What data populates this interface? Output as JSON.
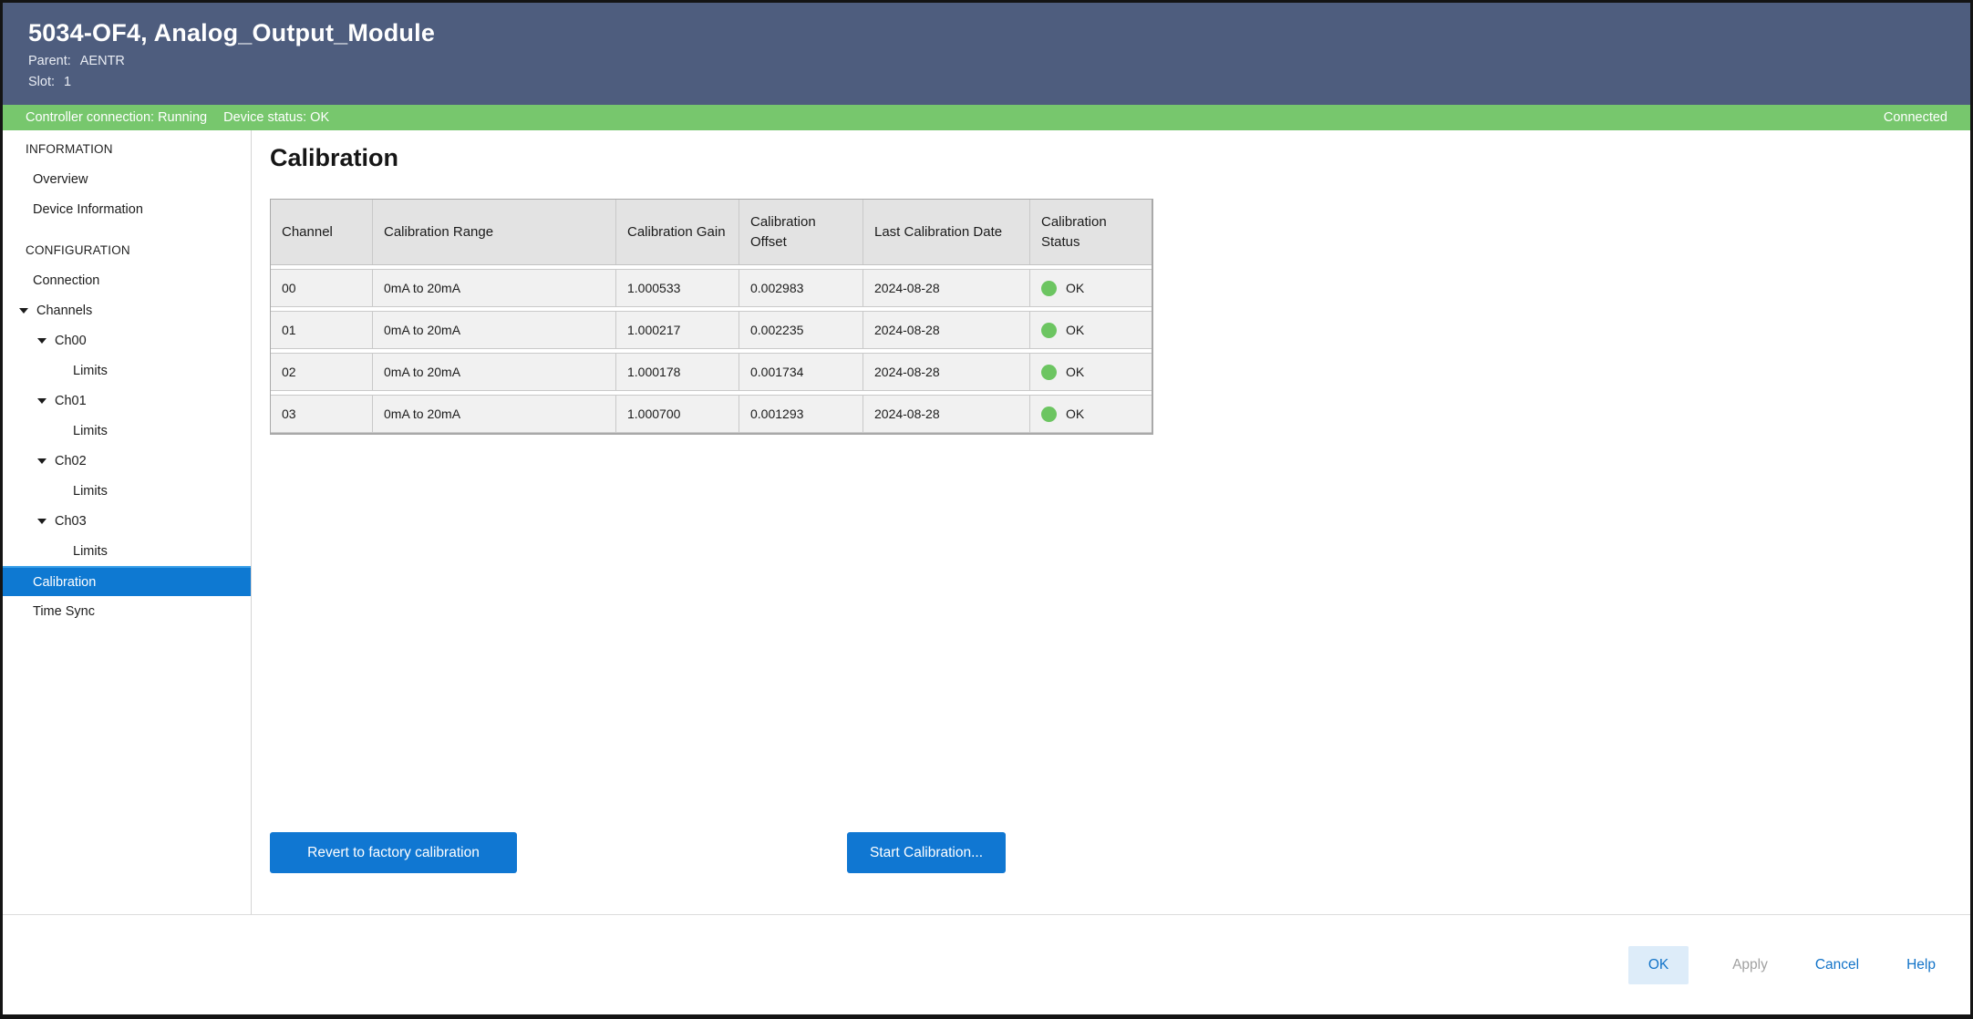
{
  "header": {
    "title": "5034-OF4, Analog_Output_Module",
    "parent_label": "Parent:",
    "parent_value": "AENTR",
    "slot_label": "Slot:",
    "slot_value": "1"
  },
  "status_bar": {
    "controller_connection": "Controller connection: Running",
    "device_status": "Device status: OK",
    "connection_state": "Connected"
  },
  "sidebar": {
    "items": [
      {
        "label": "INFORMATION"
      },
      {
        "label": "Overview"
      },
      {
        "label": "Device Information"
      },
      {
        "label": "CONFIGURATION"
      },
      {
        "label": "Connection"
      },
      {
        "label": "Channels"
      },
      {
        "label": "Ch00"
      },
      {
        "label": "Limits"
      },
      {
        "label": "Ch01"
      },
      {
        "label": "Limits"
      },
      {
        "label": "Ch02"
      },
      {
        "label": "Limits"
      },
      {
        "label": "Ch03"
      },
      {
        "label": "Limits"
      },
      {
        "label": "Calibration"
      },
      {
        "label": "Time Sync"
      }
    ]
  },
  "main": {
    "heading": "Calibration",
    "table": {
      "columns": [
        "Channel",
        "Calibration Range",
        "Calibration Gain",
        "Calibration Offset",
        "Last Calibration Date",
        "Calibration Status"
      ],
      "rows": [
        {
          "channel": "00",
          "range": "0mA to 20mA",
          "gain": "1.000533",
          "offset": "0.002983",
          "date": "2024-08-28",
          "status": "OK"
        },
        {
          "channel": "01",
          "range": "0mA to 20mA",
          "gain": "1.000217",
          "offset": "0.002235",
          "date": "2024-08-28",
          "status": "OK"
        },
        {
          "channel": "02",
          "range": "0mA to 20mA",
          "gain": "1.000178",
          "offset": "0.001734",
          "date": "2024-08-28",
          "status": "OK"
        },
        {
          "channel": "03",
          "range": "0mA to 20mA",
          "gain": "1.000700",
          "offset": "0.001293",
          "date": "2024-08-28",
          "status": "OK"
        }
      ]
    },
    "actions": {
      "revert": "Revert to factory calibration",
      "start": "Start Calibration..."
    }
  },
  "footer": {
    "ok": "OK",
    "apply": "Apply",
    "cancel": "Cancel",
    "help": "Help"
  },
  "colors": {
    "titlebar_bg": "#4e5d7e",
    "statusbar_bg": "#77c76d",
    "accent_blue": "#1077d2",
    "selected_item_bg": "#0e79d2",
    "status_ok_green": "#6cc561",
    "table_header_bg": "#e3e3e3",
    "table_row_bg": "#f1f1f1"
  }
}
